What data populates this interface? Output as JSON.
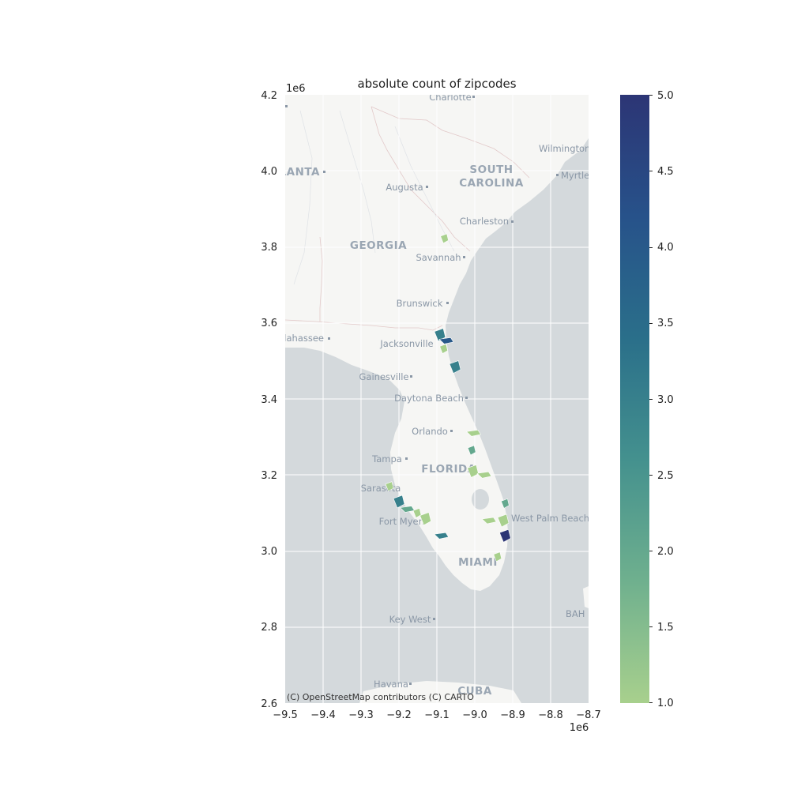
{
  "title": "absolute count of zipcodes",
  "attribution": "(C) OpenStreetMap contributors (C) CARTO",
  "x_axis": {
    "ticks": [
      "−9.5",
      "−9.4",
      "−9.3",
      "−9.2",
      "−9.1",
      "−9.0",
      "−8.9",
      "−8.8",
      "−8.7"
    ],
    "offset": "1e6"
  },
  "y_axis": {
    "ticks": [
      "2.6",
      "2.8",
      "3.0",
      "3.2",
      "3.4",
      "3.6",
      "3.8",
      "4.0",
      "4.2"
    ],
    "offset": "1e6"
  },
  "colorbar": {
    "ticks": [
      "1.0",
      "1.5",
      "2.0",
      "2.5",
      "3.0",
      "3.5",
      "4.0",
      "4.5",
      "5.0"
    ],
    "min": 1.0,
    "max": 5.0,
    "colors": [
      "#a8d08d",
      "#6fb08e",
      "#44918e",
      "#2a6f8a",
      "#27528a",
      "#2c3575"
    ]
  },
  "map_labels": {
    "cities": [
      {
        "name": "Charlotte"
      },
      {
        "name": "Wilmington"
      },
      {
        "name": "ATLANTA"
      },
      {
        "name": "Augusta"
      },
      {
        "name": "Myrtle"
      },
      {
        "name": "Charleston"
      },
      {
        "name": "Savannah"
      },
      {
        "name": "Brunswick"
      },
      {
        "name": "Tallahassee"
      },
      {
        "name": "Jacksonville"
      },
      {
        "name": "Gainesville"
      },
      {
        "name": "Daytona Beach"
      },
      {
        "name": "Orlando"
      },
      {
        "name": "Tampa"
      },
      {
        "name": "Sarasota"
      },
      {
        "name": "Fort Myers"
      },
      {
        "name": "West Palm Beach"
      },
      {
        "name": "MIAMI"
      },
      {
        "name": "Key West"
      },
      {
        "name": "Havana"
      },
      {
        "name": "CUBA"
      },
      {
        "name": "BAH"
      }
    ],
    "states": [
      "SOUTH",
      "CAROLINA",
      "GEORGIA",
      "FLORIDA"
    ]
  },
  "chart_data": {
    "type": "choropleth",
    "title": "absolute count of zipcodes",
    "xlim": [
      -9500000,
      -8700000
    ],
    "ylim": [
      2600000,
      4200000
    ],
    "grid": true,
    "colorbar_range": [
      1.0,
      5.0
    ],
    "colorbar_label": "",
    "regions": [
      {
        "x": -9080000,
        "y": 3822000,
        "value": 1
      },
      {
        "x": -9092000,
        "y": 3569000,
        "value": 3
      },
      {
        "x": -9075000,
        "y": 3553000,
        "value": 4
      },
      {
        "x": -9082000,
        "y": 3532000,
        "value": 1
      },
      {
        "x": -9052000,
        "y": 3484000,
        "value": 3
      },
      {
        "x": -9003000,
        "y": 3310000,
        "value": 1
      },
      {
        "x": -9008000,
        "y": 3265000,
        "value": 2
      },
      {
        "x": -9005000,
        "y": 3210000,
        "value": 1
      },
      {
        "x": -8975000,
        "y": 3200000,
        "value": 1
      },
      {
        "x": -9225000,
        "y": 3170000,
        "value": 1
      },
      {
        "x": -9200000,
        "y": 3130000,
        "value": 3
      },
      {
        "x": -9178000,
        "y": 3110000,
        "value": 2
      },
      {
        "x": -9152000,
        "y": 3100000,
        "value": 1
      },
      {
        "x": -9130000,
        "y": 3085000,
        "value": 1
      },
      {
        "x": -9088000,
        "y": 3040000,
        "value": 3
      },
      {
        "x": -8920000,
        "y": 3125000,
        "value": 2
      },
      {
        "x": -8925000,
        "y": 3080000,
        "value": 1
      },
      {
        "x": -8962000,
        "y": 3080000,
        "value": 1
      },
      {
        "x": -8940000,
        "y": 2985000,
        "value": 1
      },
      {
        "x": -8920000,
        "y": 3040000,
        "value": 5
      }
    ]
  }
}
